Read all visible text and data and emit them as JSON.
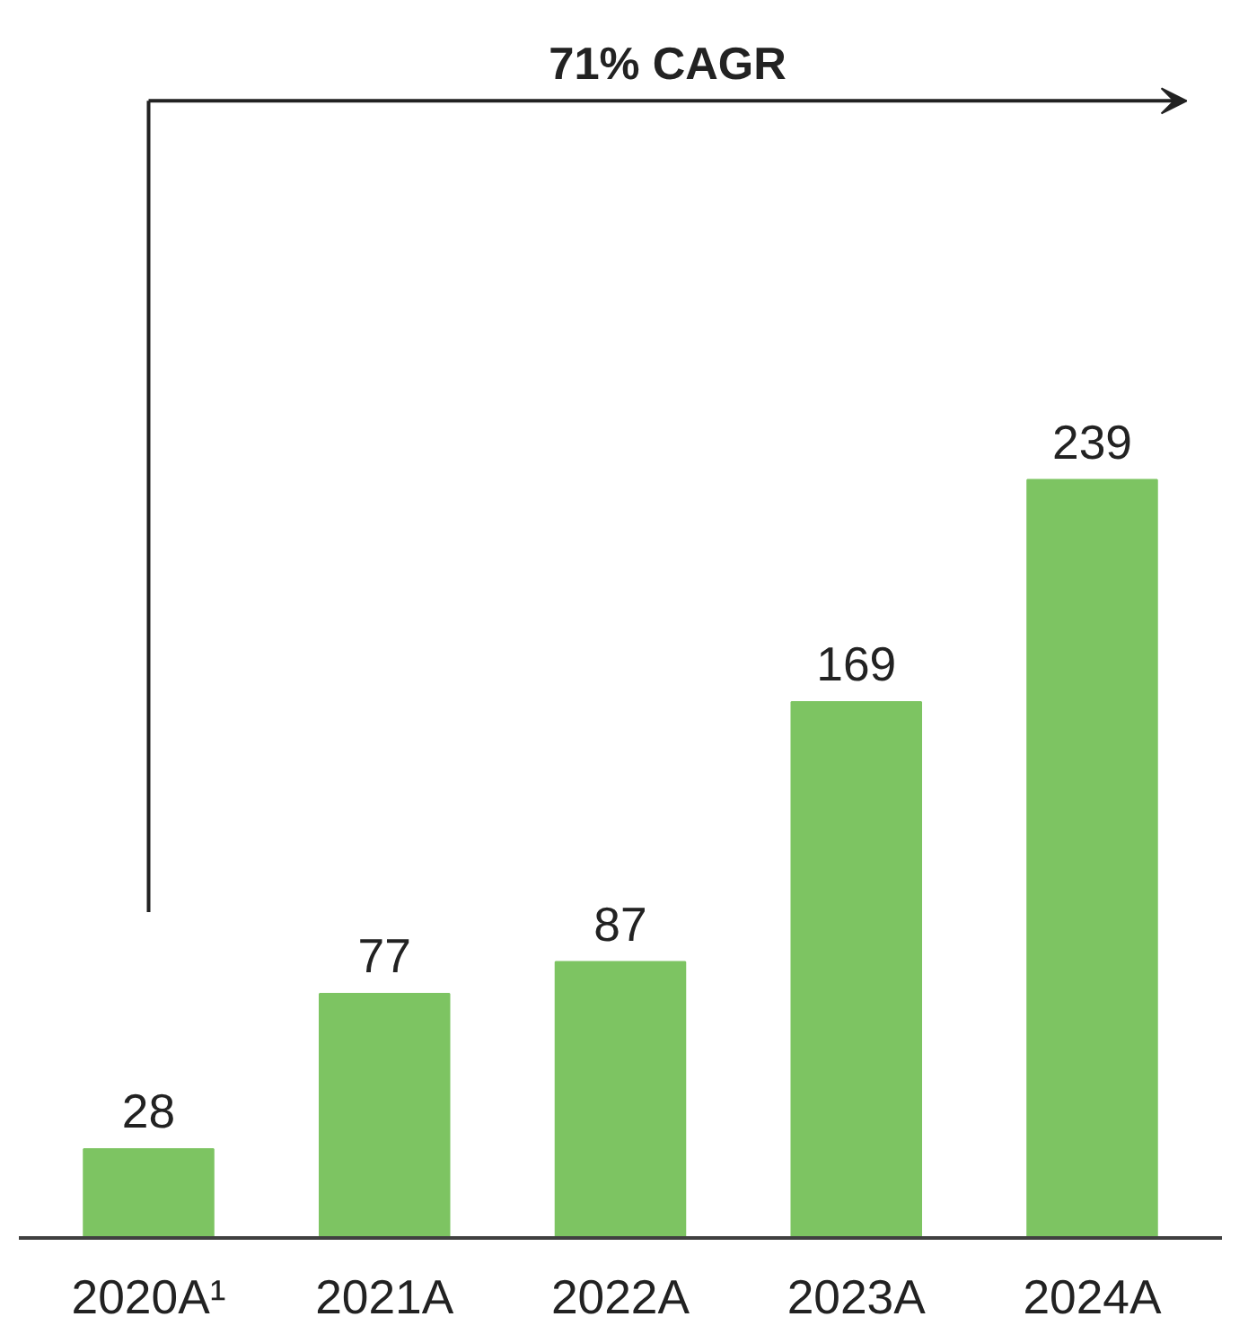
{
  "chart_data": {
    "type": "bar",
    "categories": [
      "2020A¹",
      "2021A",
      "2022A",
      "2023A",
      "2024A"
    ],
    "values": [
      28,
      77,
      87,
      169,
      239
    ],
    "color": "#7dc462",
    "data_labels": true,
    "annotations": [
      "71% CAGR"
    ]
  }
}
